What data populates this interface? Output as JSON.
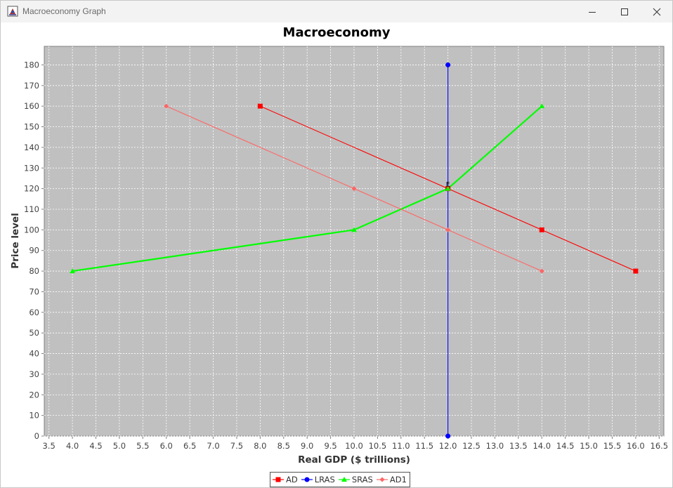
{
  "window": {
    "title": "Macroeconomy Graph"
  },
  "colors": {
    "plot_background": "#c0c0c0",
    "grid": "#ffffff",
    "AD": "#ff0000",
    "LRAS": "#0000ff",
    "SRAS": "#00ff00",
    "AD1": "#ff6666"
  },
  "icons": {
    "app": "java-app-icon",
    "minimize": "minimize-icon",
    "maximize": "maximize-icon",
    "close": "close-icon"
  },
  "chart_data": {
    "type": "line",
    "title": "Macroeconomy",
    "xlabel": "Real GDP ($ trillions)",
    "ylabel": "Price level",
    "xlim": [
      3.4,
      16.6
    ],
    "ylim": [
      0,
      189
    ],
    "xticks": [
      3.5,
      4.0,
      4.5,
      5.0,
      5.5,
      6.0,
      6.5,
      7.0,
      7.5,
      8.0,
      8.5,
      9.0,
      9.5,
      10.0,
      10.5,
      11.0,
      11.5,
      12.0,
      12.5,
      13.0,
      13.5,
      14.0,
      14.5,
      15.0,
      15.5,
      16.0,
      16.5
    ],
    "xtick_labels": [
      "3.5",
      "4.0",
      "4.5",
      "5.0",
      "5.5",
      "6.0",
      "6.5",
      "7.0",
      "7.5",
      "8.0",
      "8.5",
      "9.0",
      "9.5",
      "10.0",
      "10.5",
      "11.0",
      "11.5",
      "12.0",
      "12.5",
      "13.0",
      "13.5",
      "14.0",
      "14.5",
      "15.0",
      "15.5",
      "16.0",
      "16.5"
    ],
    "yticks": [
      0,
      10,
      20,
      30,
      40,
      50,
      60,
      70,
      80,
      90,
      100,
      110,
      120,
      130,
      140,
      150,
      160,
      170,
      180
    ],
    "ytick_labels": [
      "0",
      "10",
      "20",
      "30",
      "40",
      "50",
      "60",
      "70",
      "80",
      "90",
      "100",
      "110",
      "120",
      "130",
      "140",
      "150",
      "160",
      "170",
      "180"
    ],
    "grid": true,
    "legend_position": "bottom",
    "series": [
      {
        "name": "AD",
        "marker": "square",
        "x": [
          8,
          12,
          14,
          16
        ],
        "y": [
          160,
          120,
          100,
          80
        ]
      },
      {
        "name": "LRAS",
        "marker": "circle",
        "x": [
          12,
          12
        ],
        "y": [
          180,
          0
        ]
      },
      {
        "name": "SRAS",
        "marker": "triangle",
        "x": [
          4,
          10,
          12,
          14
        ],
        "y": [
          80,
          100,
          120,
          160
        ]
      },
      {
        "name": "AD1",
        "marker": "diamond",
        "x": [
          6,
          10,
          12,
          14
        ],
        "y": [
          160,
          120,
          100,
          80
        ]
      }
    ],
    "annotations": [
      {
        "text": "E",
        "x": 12,
        "y": 120
      }
    ]
  }
}
